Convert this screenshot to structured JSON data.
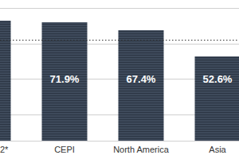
{
  "chart_data": {
    "type": "bar",
    "categories": [
      "2*",
      "CEPI",
      "North America",
      "Asia"
    ],
    "values": [
      72.8,
      71.9,
      67.4,
      52.6
    ],
    "value_labels": [
      null,
      "71.9%",
      "67.4%",
      "52.6%"
    ],
    "color": "#3e4a5b",
    "ylim": [
      5,
      80
    ],
    "yticks": [
      5,
      20,
      40,
      60,
      80
    ],
    "reference_value": 62,
    "grid": true,
    "data_labels": true,
    "tick_labels": "x"
  }
}
